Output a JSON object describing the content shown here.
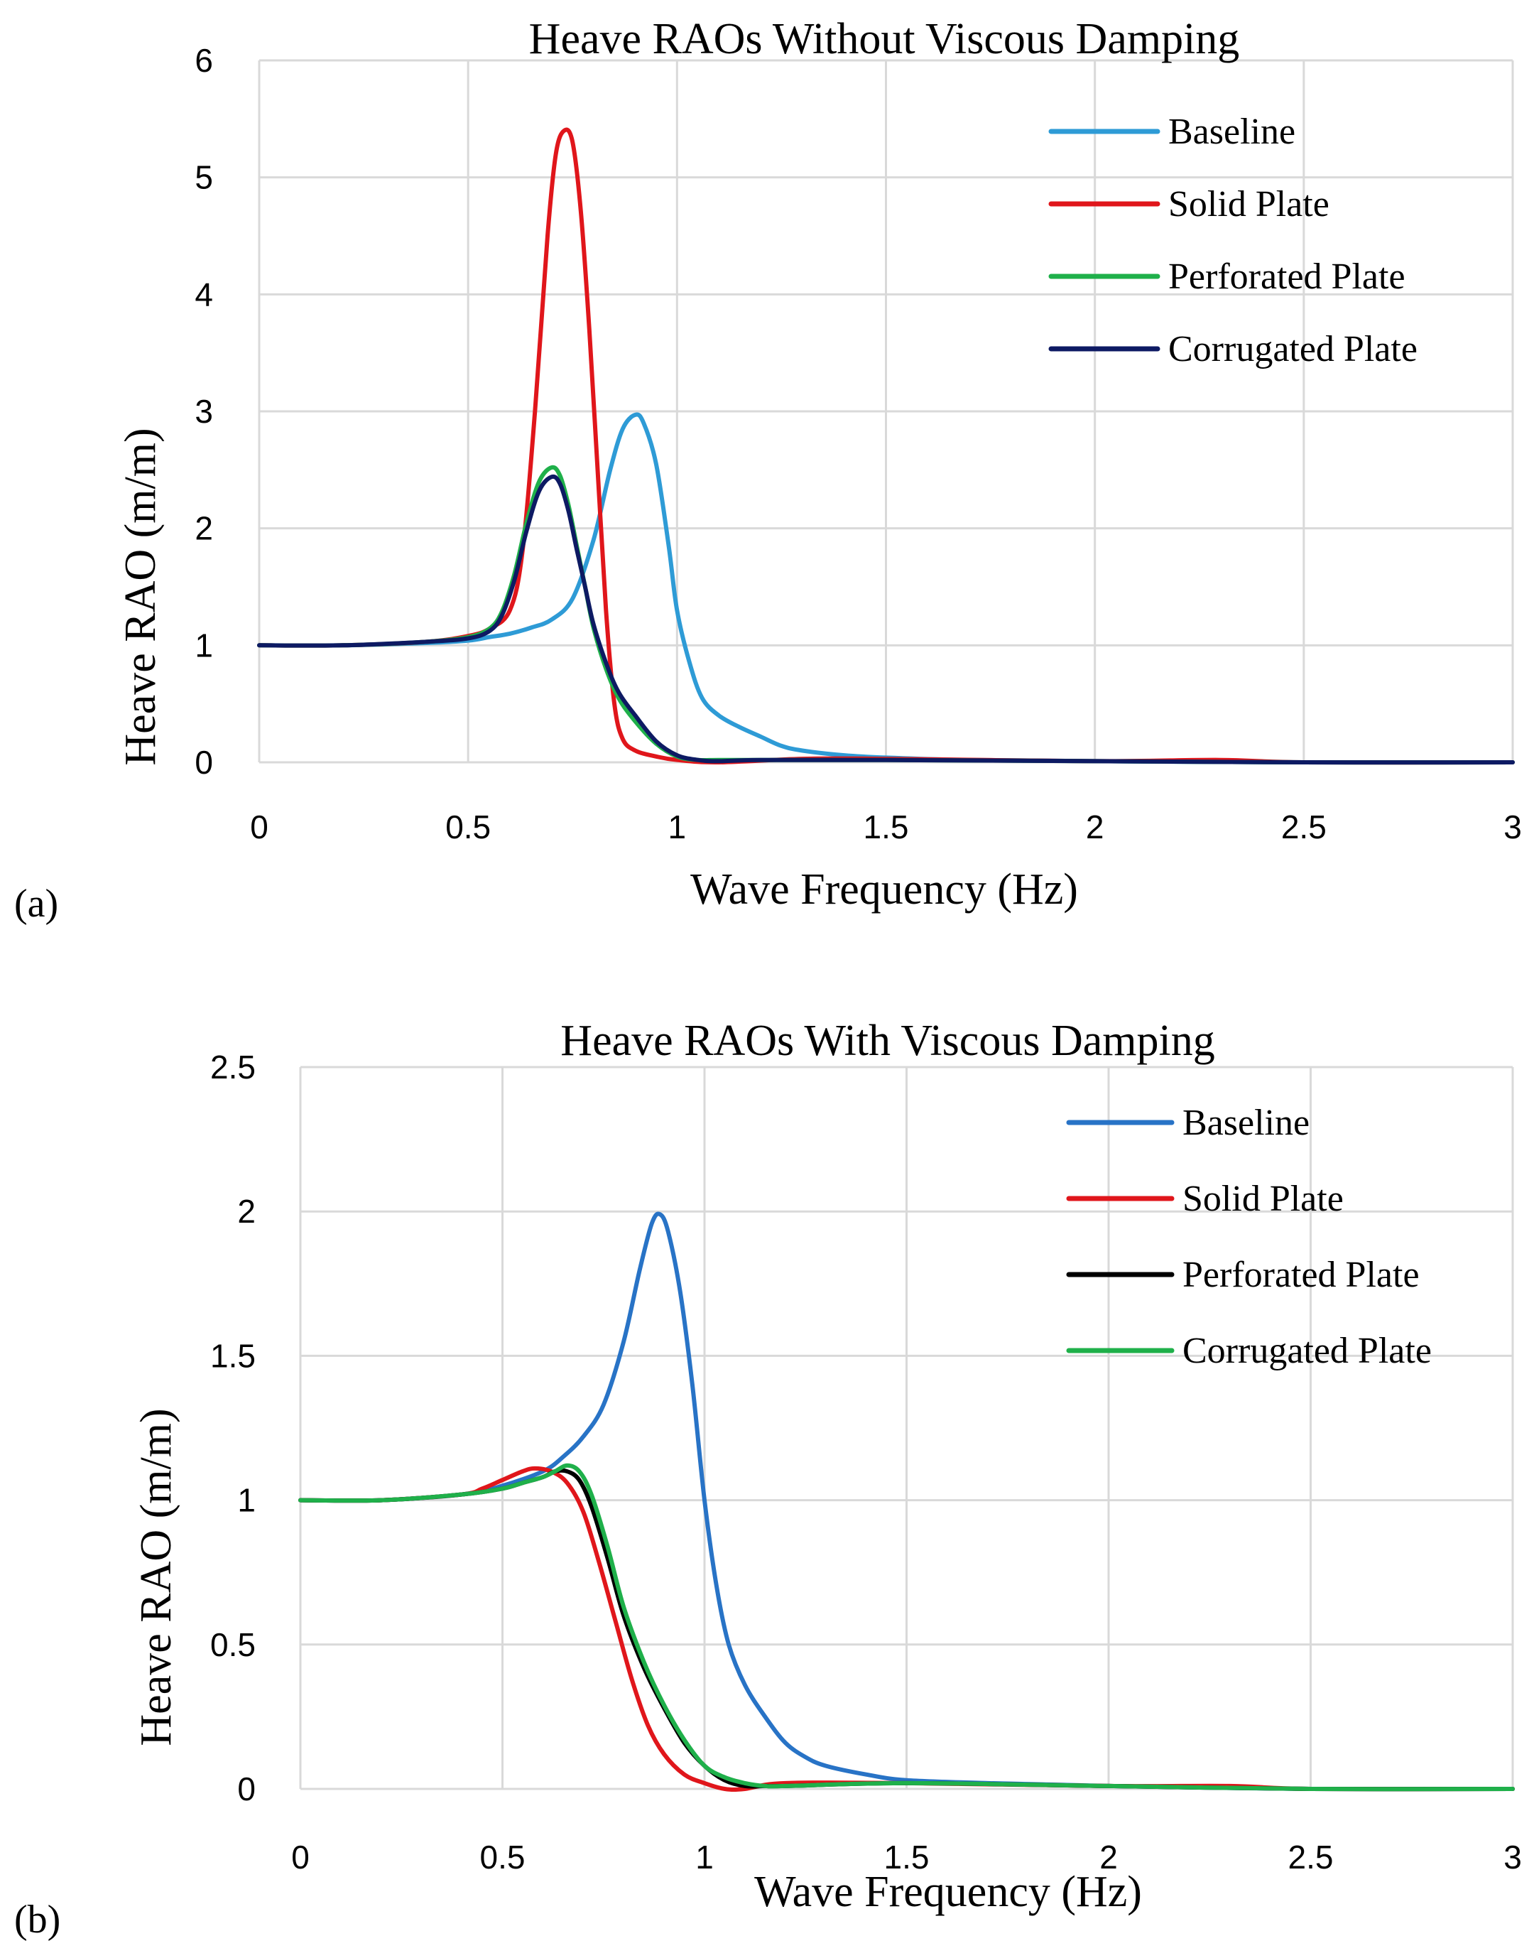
{
  "chart_data": [
    {
      "type": "line",
      "panel_label": "(a)",
      "title": "Heave RAOs Without Viscous Damping",
      "xlabel": "Wave Frequency (Hz)",
      "ylabel": "Heave RAO (m/m)",
      "xlim": [
        0,
        3
      ],
      "ylim": [
        0,
        6
      ],
      "xticks": [
        0,
        0.5,
        1,
        1.5,
        2,
        2.5,
        3
      ],
      "xtick_labels": [
        "0",
        "0.5",
        "1",
        "1.5",
        "2",
        "2.5",
        "3"
      ],
      "yticks": [
        0,
        1,
        2,
        3,
        4,
        5,
        6
      ],
      "ytick_labels": [
        "0",
        "1",
        "2",
        "3",
        "4",
        "5",
        "6"
      ],
      "grid": true,
      "legend_position": "top-right",
      "series": [
        {
          "name": "Baseline",
          "color": "#2e9bd6",
          "x": [
            0,
            0.2,
            0.4,
            0.5,
            0.55,
            0.6,
            0.65,
            0.7,
            0.75,
            0.8,
            0.84,
            0.87,
            0.9,
            0.92,
            0.95,
            0.98,
            1.0,
            1.03,
            1.06,
            1.1,
            1.15,
            1.2,
            1.25,
            1.3,
            1.4,
            1.5,
            1.7,
            2.0,
            2.5,
            3.0
          ],
          "y": [
            1.0,
            1.0,
            1.02,
            1.04,
            1.07,
            1.1,
            1.15,
            1.22,
            1.4,
            1.9,
            2.5,
            2.85,
            2.97,
            2.9,
            2.55,
            1.85,
            1.3,
            0.85,
            0.55,
            0.4,
            0.3,
            0.22,
            0.14,
            0.1,
            0.06,
            0.04,
            0.02,
            0.01,
            0.0,
            0.0
          ]
        },
        {
          "name": "Solid Plate",
          "color": "#e0161b",
          "x": [
            0,
            0.2,
            0.4,
            0.5,
            0.55,
            0.6,
            0.63,
            0.66,
            0.69,
            0.71,
            0.73,
            0.75,
            0.77,
            0.79,
            0.81,
            0.83,
            0.85,
            0.87,
            0.9,
            0.95,
            1.0,
            1.1,
            1.3,
            1.5,
            2.0,
            2.3,
            2.5,
            3.0
          ],
          "y": [
            1.0,
            1.0,
            1.03,
            1.08,
            1.14,
            1.3,
            1.8,
            3.0,
            4.5,
            5.2,
            5.4,
            5.3,
            4.7,
            3.7,
            2.5,
            1.3,
            0.5,
            0.2,
            0.1,
            0.05,
            0.02,
            0.0,
            0.03,
            0.03,
            0.01,
            0.02,
            0.0,
            0.0
          ]
        },
        {
          "name": "Perforated Plate",
          "color": "#1fb04a",
          "x": [
            0,
            0.2,
            0.4,
            0.5,
            0.55,
            0.58,
            0.61,
            0.64,
            0.67,
            0.7,
            0.72,
            0.74,
            0.76,
            0.78,
            0.8,
            0.83,
            0.86,
            0.9,
            0.95,
            1.0,
            1.05,
            1.1,
            1.2,
            1.5,
            2.0,
            2.5,
            3.0
          ],
          "y": [
            1.0,
            1.0,
            1.03,
            1.07,
            1.14,
            1.28,
            1.6,
            2.05,
            2.4,
            2.52,
            2.45,
            2.2,
            1.85,
            1.5,
            1.15,
            0.8,
            0.55,
            0.35,
            0.16,
            0.05,
            0.02,
            0.02,
            0.02,
            0.02,
            0.01,
            0.0,
            0.0
          ]
        },
        {
          "name": "Corrugated Plate",
          "color": "#0d1a63",
          "x": [
            0,
            0.2,
            0.4,
            0.5,
            0.55,
            0.58,
            0.61,
            0.64,
            0.67,
            0.7,
            0.72,
            0.74,
            0.76,
            0.78,
            0.8,
            0.83,
            0.86,
            0.9,
            0.95,
            1.0,
            1.05,
            1.1,
            1.2,
            1.5,
            2.0,
            2.5,
            3.0
          ],
          "y": [
            1.0,
            1.0,
            1.03,
            1.06,
            1.12,
            1.25,
            1.55,
            1.98,
            2.32,
            2.44,
            2.38,
            2.15,
            1.82,
            1.5,
            1.18,
            0.85,
            0.6,
            0.4,
            0.18,
            0.06,
            0.02,
            0.01,
            0.02,
            0.02,
            0.01,
            0.0,
            0.0
          ]
        }
      ]
    },
    {
      "type": "line",
      "panel_label": "(b)",
      "title": "Heave RAOs With Viscous Damping",
      "xlabel": "Wave Frequency (Hz)",
      "ylabel": "Heave RAO (m/m)",
      "xlim": [
        0,
        3
      ],
      "ylim": [
        0,
        2.5
      ],
      "xticks": [
        0,
        0.5,
        1,
        1.5,
        2,
        2.5,
        3
      ],
      "xtick_labels": [
        "0",
        "0.5",
        "1",
        "1.5",
        "2",
        "2.5",
        "3"
      ],
      "yticks": [
        0,
        0.5,
        1,
        1.5,
        2,
        2.5
      ],
      "ytick_labels": [
        "0",
        "0.5",
        "1",
        "1.5",
        "2",
        "2.5"
      ],
      "grid": true,
      "legend_position": "top-right",
      "series": [
        {
          "name": "Baseline",
          "color": "#2873c6",
          "x": [
            0,
            0.2,
            0.4,
            0.5,
            0.6,
            0.65,
            0.7,
            0.75,
            0.8,
            0.84,
            0.87,
            0.89,
            0.91,
            0.94,
            0.97,
            1.0,
            1.03,
            1.06,
            1.1,
            1.15,
            1.2,
            1.25,
            1.3,
            1.4,
            1.5,
            1.7,
            2.0,
            2.5,
            3.0
          ],
          "y": [
            1.0,
            1.0,
            1.02,
            1.05,
            1.1,
            1.15,
            1.22,
            1.33,
            1.55,
            1.8,
            1.96,
            1.99,
            1.93,
            1.72,
            1.4,
            1.0,
            0.7,
            0.5,
            0.36,
            0.25,
            0.16,
            0.11,
            0.08,
            0.05,
            0.03,
            0.02,
            0.01,
            0.0,
            0.0
          ]
        },
        {
          "name": "Solid Plate",
          "color": "#e0161b",
          "x": [
            0,
            0.2,
            0.4,
            0.45,
            0.5,
            0.55,
            0.58,
            0.62,
            0.66,
            0.7,
            0.74,
            0.78,
            0.82,
            0.86,
            0.9,
            0.95,
            1.0,
            1.05,
            1.1,
            1.2,
            1.5,
            2.0,
            2.3,
            2.5,
            3.0
          ],
          "y": [
            1.0,
            1.0,
            1.02,
            1.04,
            1.07,
            1.1,
            1.11,
            1.1,
            1.06,
            0.96,
            0.78,
            0.58,
            0.38,
            0.22,
            0.12,
            0.05,
            0.02,
            0.0,
            0.0,
            0.02,
            0.02,
            0.01,
            0.01,
            0.0,
            0.0
          ]
        },
        {
          "name": "Perforated Plate",
          "color": "#000000",
          "x": [
            0,
            0.2,
            0.4,
            0.5,
            0.55,
            0.6,
            0.63,
            0.66,
            0.69,
            0.72,
            0.76,
            0.8,
            0.85,
            0.9,
            0.95,
            1.0,
            1.05,
            1.1,
            1.15,
            1.2,
            1.5,
            2.0,
            2.5,
            3.0
          ],
          "y": [
            1.0,
            1.0,
            1.02,
            1.04,
            1.06,
            1.08,
            1.1,
            1.1,
            1.07,
            0.98,
            0.8,
            0.6,
            0.42,
            0.28,
            0.16,
            0.08,
            0.03,
            0.01,
            0.01,
            0.01,
            0.02,
            0.01,
            0.0,
            0.0
          ]
        },
        {
          "name": "Corrugated Plate",
          "color": "#1fb04a",
          "x": [
            0,
            0.2,
            0.4,
            0.5,
            0.55,
            0.6,
            0.63,
            0.66,
            0.69,
            0.72,
            0.76,
            0.8,
            0.85,
            0.9,
            0.95,
            1.0,
            1.05,
            1.1,
            1.15,
            1.2,
            1.5,
            2.0,
            2.5,
            3.0
          ],
          "y": [
            1.0,
            1.0,
            1.02,
            1.04,
            1.06,
            1.08,
            1.1,
            1.12,
            1.1,
            1.02,
            0.84,
            0.63,
            0.44,
            0.29,
            0.17,
            0.08,
            0.04,
            0.02,
            0.01,
            0.01,
            0.02,
            0.01,
            0.0,
            0.0
          ]
        }
      ]
    }
  ]
}
